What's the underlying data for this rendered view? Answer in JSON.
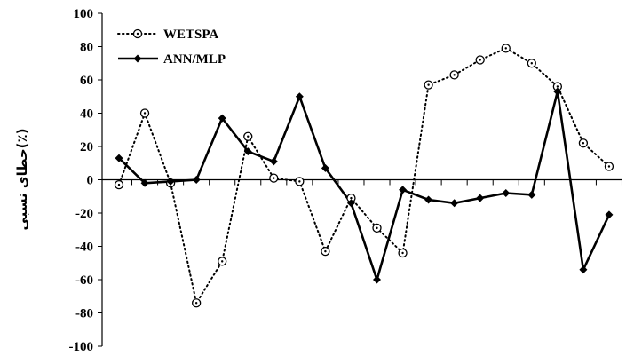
{
  "chart_data": {
    "type": "line",
    "title": "",
    "xlabel": "",
    "ylabel": "خطای نسبی(٪)",
    "ylim": [
      -100,
      100
    ],
    "yticks": [
      "100",
      "80",
      "60",
      "40",
      "20",
      "0",
      "-20",
      "-40",
      "-60",
      "-80",
      "-100"
    ],
    "x": [
      1,
      2,
      3,
      4,
      5,
      6,
      7,
      8,
      9,
      10,
      11,
      12,
      13,
      14,
      15,
      16,
      17,
      18,
      19,
      20
    ],
    "grid": false,
    "legend_position": "top-left",
    "series": [
      {
        "name": "WETSPA",
        "style": "dotted",
        "marker": "circle-dot",
        "color": "#000000",
        "values": [
          -3,
          40,
          -2,
          -74,
          -49,
          26,
          1,
          -1,
          -43,
          -11,
          -29,
          -44,
          57,
          63,
          72,
          79,
          70,
          56,
          22,
          8
        ]
      },
      {
        "name": "ANN/MLP",
        "style": "solid",
        "marker": "diamond",
        "color": "#000000",
        "values": [
          13,
          -2,
          -1,
          0,
          37,
          17,
          11,
          50,
          7,
          -14,
          -60,
          -6,
          -12,
          -14,
          -11,
          -8,
          -9,
          53,
          -54,
          -21
        ]
      }
    ]
  }
}
